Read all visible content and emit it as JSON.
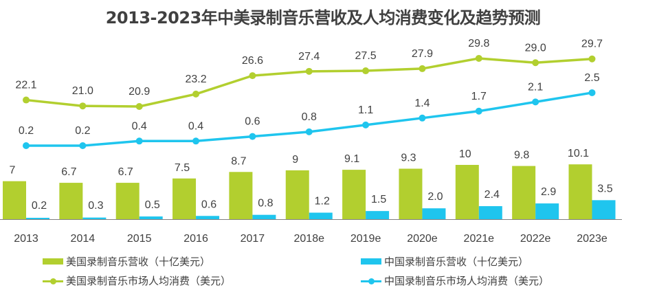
{
  "colors": {
    "us": "#b2cf2f",
    "cn": "#1fc5ee",
    "text": "#404040",
    "axis": "#808080"
  },
  "chart_data": {
    "type": "bar",
    "title": "2013-2023年中美录制音乐营收及人均消费变化及趋势预测",
    "xlabel": "",
    "ylabel": "",
    "categories": [
      "2013",
      "2014",
      "2015",
      "2016",
      "2017",
      "2018e",
      "2019e",
      "2020e",
      "2021e",
      "2022e",
      "2023e"
    ],
    "series": [
      {
        "name": "美国录制音乐营收（十亿美元）",
        "kind": "bar",
        "color_key": "us",
        "values": [
          7,
          6.7,
          6.7,
          7.5,
          8.7,
          9,
          9.1,
          9.3,
          10,
          9.8,
          10.1
        ],
        "labels": [
          "7",
          "6.7",
          "6.7",
          "7.5",
          "8.7",
          "9",
          "9.1",
          "9.3",
          "10",
          "9.8",
          "10.1"
        ]
      },
      {
        "name": "中国录制音乐营收（十亿美元）",
        "kind": "bar",
        "color_key": "cn",
        "values": [
          0.2,
          0.3,
          0.5,
          0.6,
          0.8,
          1.2,
          1.5,
          2.0,
          2.4,
          2.9,
          3.5
        ],
        "labels": [
          "0.2",
          "0.3",
          "0.5",
          "0.6",
          "0.8",
          "1.2",
          "1.5",
          "2.0",
          "2.4",
          "2.9",
          "3.5"
        ]
      },
      {
        "name": "美国录制音乐市场人均消费（美元）",
        "kind": "line",
        "color_key": "us",
        "values": [
          22.1,
          21.0,
          20.9,
          23.2,
          26.6,
          27.4,
          27.5,
          27.9,
          29.8,
          29.0,
          29.7
        ],
        "labels": [
          "22.1",
          "21.0",
          "20.9",
          "23.2",
          "26.6",
          "27.4",
          "27.5",
          "27.9",
          "29.8",
          "29.0",
          "29.7"
        ]
      },
      {
        "name": "中国录制音乐市场人均消费（美元）",
        "kind": "line",
        "color_key": "cn",
        "values": [
          0.2,
          0.2,
          0.4,
          0.4,
          0.6,
          0.8,
          1.1,
          1.4,
          1.7,
          2.1,
          2.5
        ],
        "labels": [
          "0.2",
          "0.2",
          "0.4",
          "0.4",
          "0.6",
          "0.8",
          "1.1",
          "1.4",
          "1.7",
          "2.1",
          "2.5"
        ]
      }
    ],
    "grid": false,
    "legend_position": "bottom"
  },
  "legend": [
    {
      "label": "美国录制音乐营收（十亿美元）",
      "type": "bar",
      "color_key": "us"
    },
    {
      "label": "中国录制音乐营收（十亿美元）",
      "type": "bar",
      "color_key": "cn"
    },
    {
      "label": "美国录制音乐市场人均消费（美元）",
      "type": "line",
      "color_key": "us"
    },
    {
      "label": "中国录制音乐市场人均消费（美元）",
      "type": "line",
      "color_key": "cn"
    }
  ]
}
